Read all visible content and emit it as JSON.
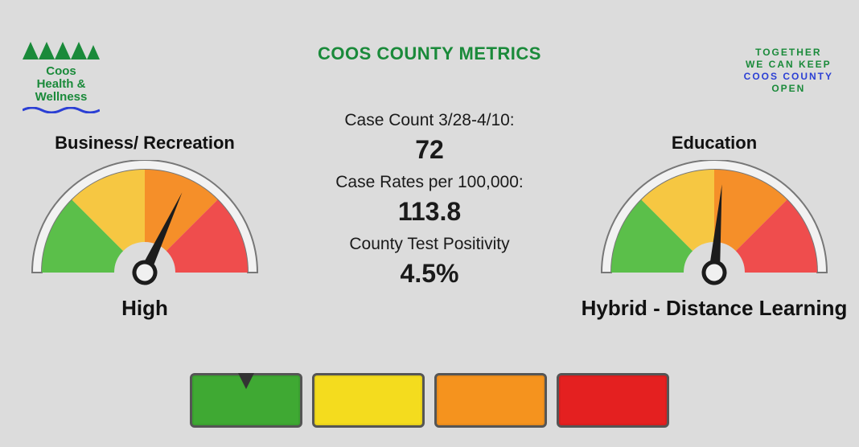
{
  "page": {
    "background_color": "#dcdcdc",
    "title": "COOS COUNTY METRICS",
    "title_color": "#1a8a3a"
  },
  "logo": {
    "line1": "Coos",
    "line2": "Health &",
    "line3": "Wellness",
    "tree_color": "#1a8a3a",
    "wave_color": "#2b3fd4"
  },
  "slogan": {
    "line1": "TOGETHER",
    "line2": "WE CAN KEEP",
    "line3": "COOS COUNTY",
    "line4": "OPEN",
    "green_color": "#1a8a3a",
    "blue_color": "#2b3fd4"
  },
  "gauges": {
    "left": {
      "title": "Business/ Recreation",
      "status": "High",
      "needle_angle_deg": 25,
      "segments": [
        {
          "color": "#5bbf4a"
        },
        {
          "color": "#f6c742"
        },
        {
          "color": "#f58f29"
        },
        {
          "color": "#ef4d4d"
        }
      ],
      "rim_color": "#f2f2f2",
      "frame_color": "#777",
      "needle_color": "#1c1c1c"
    },
    "right": {
      "title": "Education",
      "status": "Hybrid - Distance Learning",
      "needle_angle_deg": 5,
      "segments": [
        {
          "color": "#5bbf4a"
        },
        {
          "color": "#f6c742"
        },
        {
          "color": "#f58f29"
        },
        {
          "color": "#ef4d4d"
        }
      ],
      "rim_color": "#f2f2f2",
      "frame_color": "#777",
      "needle_color": "#1c1c1c"
    }
  },
  "metrics": {
    "label1": "Case Count 3/28-4/10:",
    "value1": "72",
    "label2": "Case Rates per 100,000:",
    "value2": "113.8",
    "label3": "County Test Positivity",
    "value3": "4.5%"
  },
  "legend": {
    "boxes": [
      {
        "color": "#3fa933",
        "marker": true
      },
      {
        "color": "#f4dc1e",
        "marker": false
      },
      {
        "color": "#f5931e",
        "marker": false
      },
      {
        "color": "#e42020",
        "marker": false
      }
    ],
    "border_color": "#555"
  }
}
